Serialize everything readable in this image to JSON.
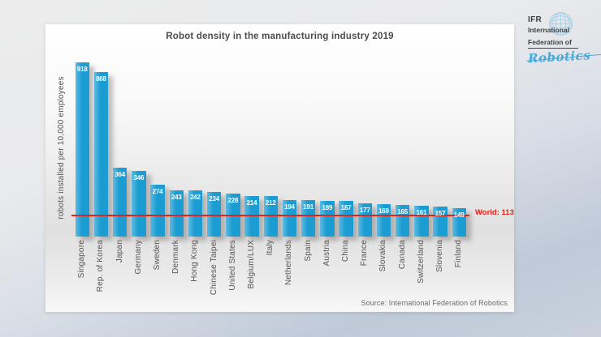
{
  "logo": {
    "abbr": "IFR",
    "line1": "International",
    "line2": "Federation of",
    "script": "Robotics",
    "text_color": "#3f3f3f",
    "script_color": "#4aa9d9",
    "globe_color": "#a9cfe7"
  },
  "chart_data": {
    "type": "bar",
    "title": "Robot density in the manufacturing industry 2019",
    "ylabel": "robots installed per 10,000 employees",
    "xlabel": "",
    "categories": [
      "Singapore",
      "Rep. of Korea",
      "Japan",
      "Germany",
      "Sweden",
      "Denmark",
      "Hong Kong",
      "Chinese Taipei",
      "United States",
      "Belgium/LUX",
      "Italy",
      "Netherlands",
      "Spain",
      "Austria",
      "China",
      "France",
      "Slovakia",
      "Canada",
      "Switzerland",
      "Slovenia",
      "Finland"
    ],
    "values": [
      918,
      868,
      364,
      346,
      274,
      243,
      242,
      234,
      228,
      214,
      212,
      194,
      191,
      189,
      187,
      177,
      169,
      165,
      161,
      157,
      149
    ],
    "bar_color": "#1b9dd3",
    "value_label_color": "#ffffff",
    "reference_line": {
      "label": "World: 113",
      "value": 113,
      "color": "#e0241c"
    },
    "source": "Source: International Federation of Robotics",
    "ylim": [
      0,
      950
    ],
    "grid": false,
    "legend": false
  }
}
